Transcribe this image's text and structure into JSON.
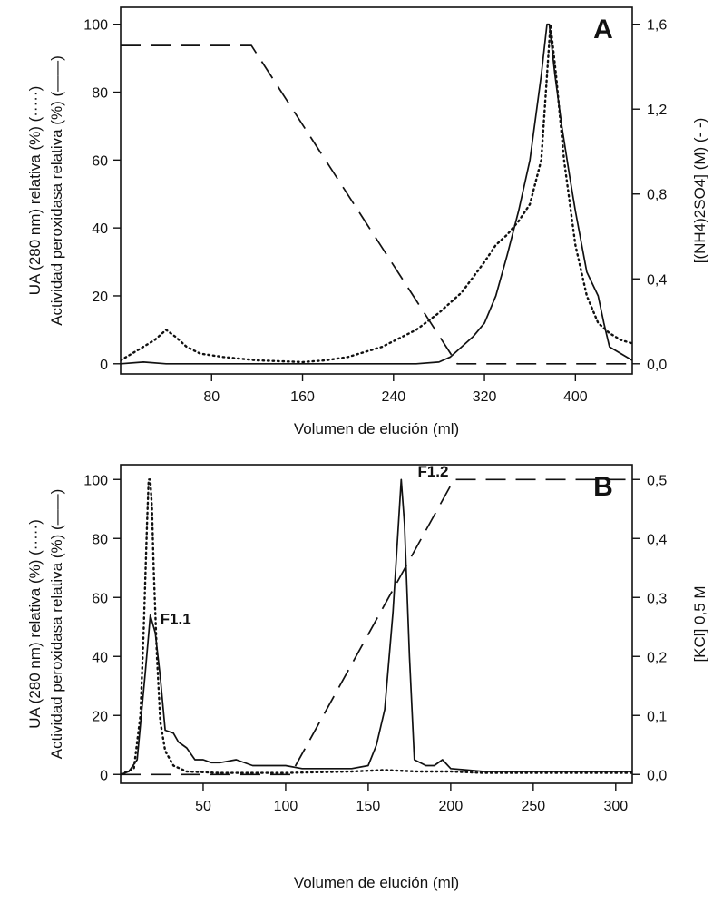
{
  "chart_data": [
    {
      "type": "line",
      "panel_label": "A",
      "xlabel": "Volumen de elución (ml)",
      "ylabel_left_1": "UA (280 nm) relativa (%) (·····)",
      "ylabel_left_2": "Actividad peroxidasa relativa (%) (——)",
      "ylabel_right": "[(NH4)2SO4] (M) (- -)",
      "xlim": [
        0,
        450
      ],
      "ylim": [
        -3,
        105
      ],
      "y2lim": [
        -0.048,
        1.68
      ],
      "x_ticks": [
        80,
        160,
        240,
        320,
        400
      ],
      "x_tick_labels": [
        "80",
        "160",
        "240",
        "320",
        "400"
      ],
      "y_ticks": [
        0,
        20,
        40,
        60,
        80,
        100
      ],
      "y_tick_labels": [
        "0",
        "20",
        "40",
        "60",
        "80",
        "100"
      ],
      "y2_ticks": [
        0,
        0.4,
        0.8,
        1.2,
        1.6
      ],
      "y2_tick_labels": [
        "0,0",
        "0,4",
        "0,8",
        "1,2",
        "1,6"
      ],
      "series": [
        {
          "style": "dotted",
          "axis": "left",
          "points": [
            [
              0,
              1
            ],
            [
              15,
              4
            ],
            [
              30,
              7
            ],
            [
              40,
              10
            ],
            [
              48,
              8
            ],
            [
              58,
              5
            ],
            [
              70,
              3
            ],
            [
              90,
              2
            ],
            [
              120,
              1
            ],
            [
              160,
              0.5
            ],
            [
              180,
              1
            ],
            [
              200,
              2
            ],
            [
              230,
              5
            ],
            [
              260,
              10
            ],
            [
              280,
              15
            ],
            [
              300,
              21
            ],
            [
              320,
              30
            ],
            [
              330,
              35
            ],
            [
              340,
              38
            ],
            [
              350,
              42
            ],
            [
              360,
              47
            ],
            [
              370,
              60
            ],
            [
              378,
              100
            ],
            [
              383,
              85
            ],
            [
              390,
              60
            ],
            [
              400,
              35
            ],
            [
              410,
              20
            ],
            [
              420,
              12
            ],
            [
              430,
              9
            ],
            [
              440,
              7
            ],
            [
              450,
              6
            ]
          ]
        },
        {
          "style": "solid",
          "axis": "left",
          "points": [
            [
              0,
              0
            ],
            [
              20,
              0.5
            ],
            [
              40,
              0
            ],
            [
              100,
              0
            ],
            [
              200,
              0
            ],
            [
              260,
              0
            ],
            [
              280,
              0.5
            ],
            [
              290,
              2
            ],
            [
              300,
              5
            ],
            [
              310,
              8
            ],
            [
              320,
              12
            ],
            [
              330,
              20
            ],
            [
              340,
              32
            ],
            [
              350,
              45
            ],
            [
              360,
              60
            ],
            [
              370,
              85
            ],
            [
              375,
              100
            ],
            [
              377,
              100
            ],
            [
              382,
              85
            ],
            [
              388,
              70
            ],
            [
              395,
              55
            ],
            [
              400,
              45
            ],
            [
              405,
              36
            ],
            [
              410,
              27
            ],
            [
              420,
              20
            ],
            [
              425,
              12
            ],
            [
              430,
              5
            ],
            [
              440,
              3
            ],
            [
              450,
              1
            ]
          ]
        },
        {
          "style": "dashed",
          "axis": "right",
          "points": [
            [
              0,
              1.5
            ],
            [
              115,
              1.5
            ],
            [
              296,
              0
            ],
            [
              450,
              0
            ]
          ]
        }
      ]
    },
    {
      "type": "line",
      "panel_label": "B",
      "xlabel": "Volumen de elución (ml)",
      "ylabel_left_1": "UA (280 nm) relativa (%) (·····)",
      "ylabel_left_2": "Actividad peroxidasa relativa (%) (——)",
      "ylabel_right": "[KCl] 0,5 M",
      "xlim": [
        0,
        310
      ],
      "ylim": [
        -3,
        105
      ],
      "y2lim": [
        -0.015,
        0.525
      ],
      "x_ticks": [
        50,
        100,
        150,
        200,
        250,
        300
      ],
      "x_tick_labels": [
        "50",
        "100",
        "150",
        "200",
        "250",
        "300"
      ],
      "y_ticks": [
        0,
        20,
        40,
        60,
        80,
        100
      ],
      "y_tick_labels": [
        "0",
        "20",
        "40",
        "60",
        "80",
        "100"
      ],
      "y2_ticks": [
        0,
        0.1,
        0.2,
        0.3,
        0.4,
        0.5
      ],
      "y2_tick_labels": [
        "0,0",
        "0,1",
        "0,2",
        "0,3",
        "0,4",
        "0,5"
      ],
      "annotations": [
        {
          "text": "F1.1",
          "x": 24,
          "y": 51
        },
        {
          "text": "F1.2",
          "x": 180,
          "y": 101
        }
      ],
      "series": [
        {
          "style": "dotted",
          "axis": "left",
          "points": [
            [
              0,
              0
            ],
            [
              8,
              2
            ],
            [
              12,
              20
            ],
            [
              14,
              50
            ],
            [
              16,
              85
            ],
            [
              17,
              100
            ],
            [
              18,
              100
            ],
            [
              19,
              90
            ],
            [
              20,
              70
            ],
            [
              22,
              40
            ],
            [
              24,
              18
            ],
            [
              27,
              8
            ],
            [
              32,
              3
            ],
            [
              40,
              1
            ],
            [
              60,
              0.5
            ],
            [
              100,
              0.5
            ],
            [
              140,
              1
            ],
            [
              160,
              1.5
            ],
            [
              180,
              1
            ],
            [
              195,
              1
            ],
            [
              200,
              1
            ],
            [
              220,
              0.5
            ],
            [
              310,
              0.5
            ]
          ]
        },
        {
          "style": "solid",
          "axis": "left",
          "points": [
            [
              0,
              0
            ],
            [
              5,
              1
            ],
            [
              10,
              5
            ],
            [
              15,
              35
            ],
            [
              18,
              54
            ],
            [
              21,
              48
            ],
            [
              24,
              33
            ],
            [
              27,
              15
            ],
            [
              32,
              14
            ],
            [
              35,
              11
            ],
            [
              40,
              9
            ],
            [
              45,
              5
            ],
            [
              50,
              5
            ],
            [
              55,
              4
            ],
            [
              60,
              4
            ],
            [
              70,
              5
            ],
            [
              80,
              3
            ],
            [
              90,
              3
            ],
            [
              100,
              3
            ],
            [
              110,
              2
            ],
            [
              130,
              2
            ],
            [
              140,
              2
            ],
            [
              150,
              3
            ],
            [
              155,
              10
            ],
            [
              160,
              22
            ],
            [
              165,
              55
            ],
            [
              170,
              100
            ],
            [
              172,
              85
            ],
            [
              175,
              40
            ],
            [
              178,
              5
            ],
            [
              185,
              3
            ],
            [
              190,
              3
            ],
            [
              195,
              5
            ],
            [
              200,
              2
            ],
            [
              220,
              1
            ],
            [
              310,
              1
            ]
          ]
        },
        {
          "style": "dashed",
          "axis": "right",
          "points": [
            [
              0,
              0
            ],
            [
              103,
              0
            ],
            [
              202,
              0.5
            ],
            [
              310,
              0.5
            ]
          ]
        }
      ]
    }
  ]
}
